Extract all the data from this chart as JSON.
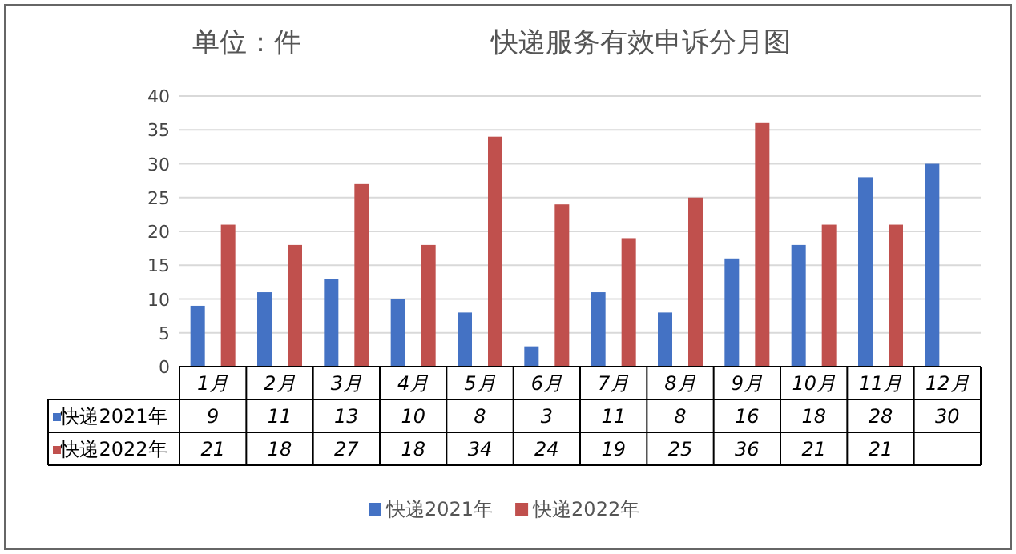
{
  "chart_data": {
    "type": "bar",
    "title": "快递服务有效申诉分月图",
    "subtitle": "单位：件",
    "categories": [
      "1月",
      "2月",
      "3月",
      "4月",
      "5月",
      "6月",
      "7月",
      "8月",
      "9月",
      "10月",
      "11月",
      "12月"
    ],
    "series": [
      {
        "name": "快递2021年",
        "color": "#4472c4",
        "values": [
          9,
          11,
          13,
          10,
          8,
          3,
          11,
          8,
          16,
          18,
          28,
          30
        ]
      },
      {
        "name": "快递2022年",
        "color": "#c0504d",
        "values": [
          21,
          18,
          27,
          18,
          34,
          24,
          19,
          25,
          36,
          21,
          21,
          null
        ]
      }
    ],
    "ylim": [
      0,
      40
    ],
    "yticks": [
      0,
      5,
      10,
      15,
      20,
      25,
      30,
      35,
      40
    ],
    "grid": "y",
    "legend": "bottom",
    "data_labels": true
  }
}
